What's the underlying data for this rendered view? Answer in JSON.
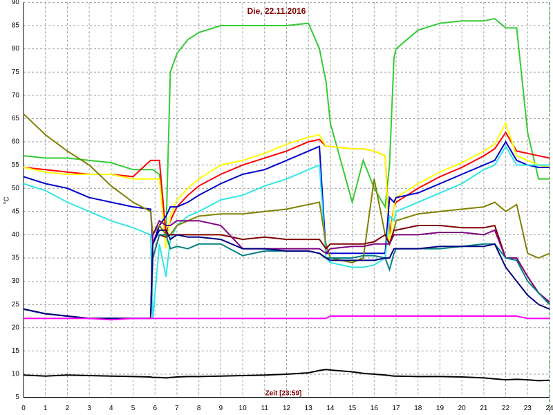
{
  "chart_data": {
    "type": "line",
    "title": "Die, 22.11.2016",
    "x_label": "Zeit [23:59]",
    "y_label": "°C",
    "x": [
      0,
      1,
      2,
      3,
      4,
      5,
      5.8,
      5.9,
      6.2,
      6.5,
      6.7,
      7,
      7.5,
      8,
      9,
      10,
      11,
      12,
      13,
      13.5,
      13.8,
      14,
      15,
      15.5,
      16,
      16.5,
      16.7,
      16.9,
      17,
      18,
      19,
      20,
      21,
      21.5,
      22,
      22.5,
      23,
      23.5,
      24
    ],
    "xlim": [
      0,
      24
    ],
    "xticks": [
      0,
      1,
      2,
      3,
      4,
      5,
      6,
      7,
      8,
      9,
      10,
      11,
      12,
      13,
      14,
      15,
      16,
      17,
      18,
      19,
      20,
      21,
      22,
      23,
      24
    ],
    "ylim": [
      5,
      90
    ],
    "yticks": [
      5,
      10,
      15,
      20,
      25,
      30,
      35,
      40,
      45,
      50,
      55,
      60,
      65,
      70,
      75,
      80,
      85,
      90
    ],
    "grid": true,
    "series": [
      {
        "color": "#33cc33",
        "values": [
          57,
          56.5,
          56.5,
          56,
          55.5,
          54,
          54,
          54,
          53,
          40,
          75,
          79,
          82,
          83.5,
          85,
          85,
          85,
          85,
          85.5,
          80,
          73,
          64,
          47,
          56,
          50,
          46,
          55,
          78,
          80,
          84,
          85.5,
          86,
          86,
          86.5,
          84.5,
          84.5,
          62,
          52,
          52
        ]
      },
      {
        "color": "#ff0000",
        "values": [
          54.5,
          54,
          53.5,
          53,
          53,
          52.5,
          56,
          56,
          56,
          40,
          43,
          46,
          48.5,
          50.5,
          53,
          55,
          56.5,
          58,
          60,
          60.5,
          59,
          59,
          58.5,
          58.5,
          58,
          57,
          40,
          46,
          47,
          50,
          52.5,
          54.5,
          57,
          58.5,
          62,
          58,
          57.5,
          57,
          56.5
        ]
      },
      {
        "color": "#ffff00",
        "values": [
          54.5,
          53.5,
          53,
          53,
          53,
          52,
          52,
          52,
          52,
          37,
          44,
          47.5,
          50,
          52,
          55,
          56,
          57.5,
          59.5,
          61,
          61.5,
          59,
          59,
          58.5,
          58.5,
          58,
          57,
          38,
          46,
          48,
          51,
          53.5,
          55.5,
          58,
          59.5,
          64,
          57,
          56,
          55,
          54.5
        ]
      },
      {
        "color": "#0000cc",
        "values": [
          52.5,
          51,
          50,
          48,
          47,
          46,
          45.5,
          38,
          42,
          44,
          46,
          46,
          47,
          48.5,
          51,
          53,
          54,
          56,
          58,
          59,
          36,
          36,
          36,
          36,
          36,
          36,
          48,
          47,
          48,
          49,
          51,
          53,
          55,
          56,
          60,
          56,
          55,
          54.5,
          54.5
        ]
      },
      {
        "color": "#33e6e6",
        "values": [
          51,
          49.5,
          47,
          45,
          43,
          41.5,
          40,
          22,
          38,
          31,
          39,
          42,
          44,
          45,
          47.5,
          48.5,
          50.5,
          52,
          54,
          55,
          35,
          34,
          33,
          33,
          33.5,
          35,
          44,
          43,
          45,
          47,
          49,
          51,
          54,
          55,
          59,
          55,
          55,
          55,
          55
        ]
      },
      {
        "color": "#808000",
        "values": [
          66,
          61.5,
          58,
          55,
          50.5,
          47,
          45,
          40,
          42,
          40,
          40,
          42,
          43,
          44,
          44.5,
          44.5,
          45,
          45.5,
          46.5,
          47,
          38,
          35,
          34,
          35,
          52,
          40,
          38,
          41,
          43,
          44.5,
          45,
          45.5,
          46,
          47,
          45,
          46.5,
          36,
          35,
          36
        ]
      },
      {
        "color": "#800000",
        "values": [
          24,
          23,
          22.5,
          22,
          22,
          22,
          22,
          35,
          40,
          39.5,
          40,
          40,
          40,
          40,
          40,
          39,
          39.5,
          39,
          39,
          39,
          37,
          38,
          38,
          38,
          38.5,
          40,
          38,
          41,
          41,
          42,
          42,
          41.5,
          41.5,
          42,
          35,
          35,
          31,
          27.5,
          25.5
        ]
      },
      {
        "color": "#800080",
        "values": [
          24,
          23,
          22.5,
          22,
          22,
          22,
          22,
          40,
          43,
          42,
          42,
          43,
          43,
          43,
          42,
          37,
          37,
          37,
          37,
          37,
          36,
          37,
          37.5,
          37.5,
          38,
          38,
          38,
          40,
          40,
          40,
          40.5,
          40.5,
          40,
          41,
          35,
          35,
          31,
          27.5,
          25.5
        ]
      },
      {
        "color": "#008080",
        "values": [
          24,
          23,
          22.5,
          22,
          22,
          22,
          22,
          35,
          40,
          40,
          37,
          37.5,
          37,
          38,
          38,
          35.5,
          36.5,
          36.5,
          36.5,
          36,
          35,
          35,
          35,
          35.5,
          35.5,
          35,
          32.5,
          36,
          37,
          37,
          37,
          37.5,
          38,
          38,
          35,
          34.5,
          30,
          27.5,
          25
        ]
      },
      {
        "color": "#000080",
        "values": [
          24,
          23,
          22.5,
          22,
          22,
          22,
          22,
          38,
          41,
          41,
          39,
          40,
          39.5,
          39.5,
          39,
          37,
          37,
          36.5,
          36.5,
          36,
          35,
          34.5,
          34.5,
          34.5,
          34.5,
          35,
          35,
          37,
          37,
          37,
          37.5,
          37.5,
          37.5,
          38,
          33,
          30,
          27,
          25,
          24
        ]
      },
      {
        "color": "#ff00ff",
        "values": [
          22,
          22,
          22,
          22,
          21.7,
          22,
          22,
          22,
          22,
          22,
          22,
          22,
          22,
          22,
          22,
          22,
          22,
          22,
          22,
          22,
          22,
          22.5,
          22.5,
          22.5,
          22.5,
          22.5,
          22.5,
          22.5,
          22.5,
          22.5,
          22.5,
          22.5,
          22.5,
          22.5,
          22.5,
          22.5,
          22,
          22,
          22
        ]
      },
      {
        "color": "#000000",
        "values": [
          9.8,
          9.6,
          9.8,
          9.7,
          9.6,
          9.5,
          9.4,
          9.3,
          9.3,
          9.2,
          9.3,
          9.4,
          9.5,
          9.5,
          9.6,
          9.7,
          9.8,
          10,
          10.3,
          10.8,
          11,
          10.9,
          10.5,
          10.2,
          10,
          9.8,
          9.7,
          9.6,
          9.6,
          9.5,
          9.5,
          9.4,
          9.2,
          9,
          8.8,
          8.9,
          8.8,
          8.6,
          8.7
        ]
      }
    ]
  }
}
